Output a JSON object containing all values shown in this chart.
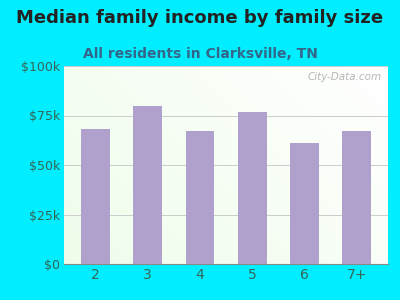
{
  "title": "Median family income by family size",
  "subtitle": "All residents in Clarksville, TN",
  "categories": [
    "2",
    "3",
    "4",
    "5",
    "6",
    "7+"
  ],
  "values": [
    68000,
    80000,
    67000,
    77000,
    61000,
    67000
  ],
  "bar_color": "#b0a0cc",
  "bg_outer": "#00eeff",
  "title_color": "#222222",
  "subtitle_color": "#336688",
  "tick_color": "#336655",
  "ylim": [
    0,
    100000
  ],
  "yticks": [
    0,
    25000,
    50000,
    75000,
    100000
  ],
  "ytick_labels": [
    "$0",
    "$25k",
    "$50k",
    "$75k",
    "$100k"
  ],
  "title_fontsize": 13,
  "subtitle_fontsize": 10,
  "watermark_text": "City-Data.com",
  "watermark_color": "#aaaaaa"
}
